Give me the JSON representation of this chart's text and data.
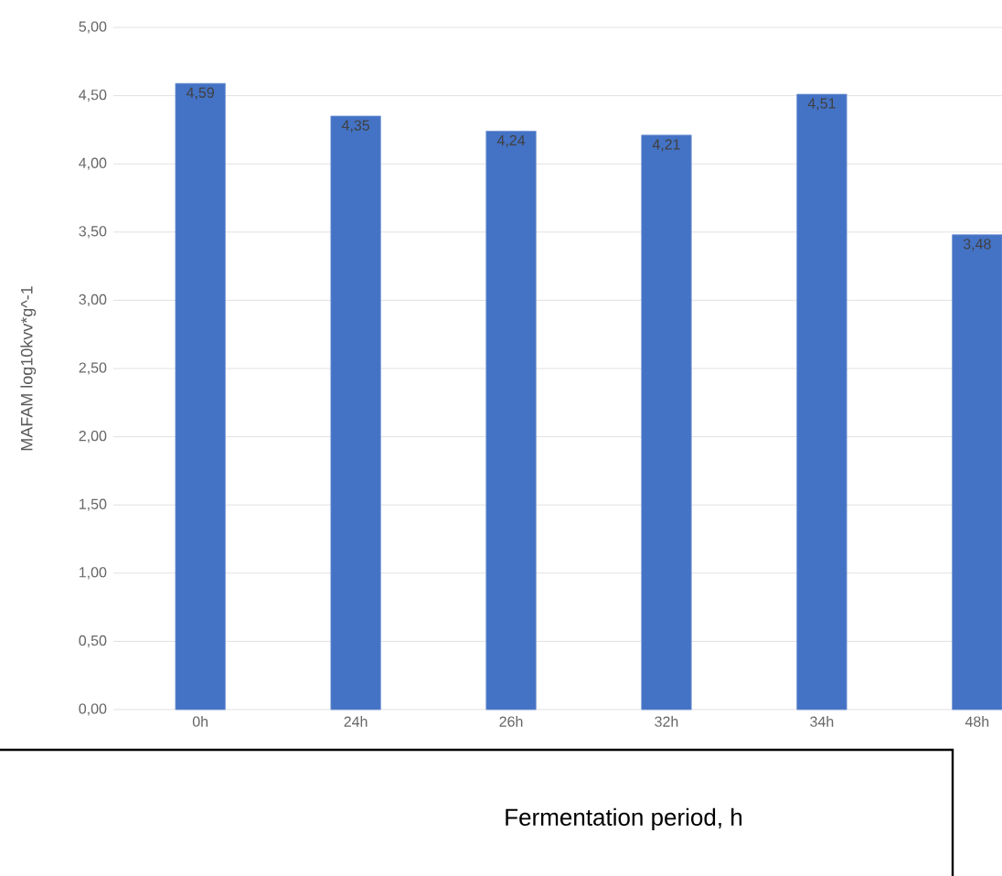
{
  "chart_data": {
    "type": "bar",
    "xlabel": "Fermentation period, h",
    "ylabel": "MAFAM log10kvv*g^-1",
    "categories": [
      "0h",
      "24h",
      "26h",
      "32h",
      "34h",
      "48h"
    ],
    "values": [
      4.59,
      4.35,
      4.24,
      4.21,
      4.51,
      3.48
    ],
    "value_labels": [
      "4,59",
      "4,35",
      "4,24",
      "4,21",
      "4,51",
      "3,48"
    ],
    "color": "#4472c4",
    "ylim": [
      0,
      5
    ],
    "yticks": [
      {
        "value": 0,
        "label": "0,00"
      },
      {
        "value": 0.5,
        "label": "0,50"
      },
      {
        "value": 1,
        "label": "1,00"
      },
      {
        "value": 1.5,
        "label": "1,50"
      },
      {
        "value": 2,
        "label": "2,00"
      },
      {
        "value": 2.5,
        "label": "2,50"
      },
      {
        "value": 3,
        "label": "3,00"
      },
      {
        "value": 3.5,
        "label": "3,50"
      },
      {
        "value": 4,
        "label": "4,00"
      },
      {
        "value": 4.5,
        "label": "4,50"
      },
      {
        "value": 5,
        "label": "5,00"
      }
    ],
    "grid": "y"
  }
}
